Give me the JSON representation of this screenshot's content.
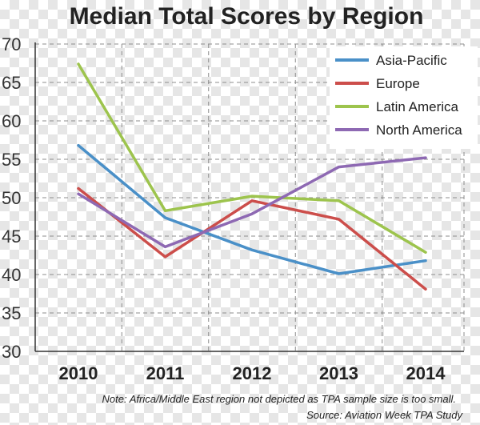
{
  "chart_data": {
    "type": "line",
    "title": "Median Total Scores by Region",
    "xlabel": "",
    "ylabel": "",
    "categories": [
      "2010",
      "2011",
      "2012",
      "2013",
      "2014"
    ],
    "ylim": [
      30,
      70
    ],
    "yticks": [
      30,
      35,
      40,
      45,
      50,
      55,
      60,
      65,
      70
    ],
    "grid": true,
    "legend_position": "top-right",
    "series": [
      {
        "name": "Asia-Pacific",
        "color": "#4a90c8",
        "values": [
          56.8,
          47.4,
          43.2,
          40.1,
          41.8
        ]
      },
      {
        "name": "Europe",
        "color": "#cc4e4b",
        "values": [
          51.2,
          42.3,
          49.6,
          47.2,
          38.1
        ]
      },
      {
        "name": "Latin America",
        "color": "#9dc44d",
        "values": [
          67.4,
          48.3,
          50.2,
          49.6,
          42.9
        ]
      },
      {
        "name": "North America",
        "color": "#8e69b3",
        "values": [
          50.5,
          43.6,
          47.9,
          54.0,
          55.2
        ]
      }
    ],
    "note": "Note: Africa/Middle East region not depicted as TPA sample size is too small.",
    "source": "Source: Aviation Week TPA Study"
  }
}
